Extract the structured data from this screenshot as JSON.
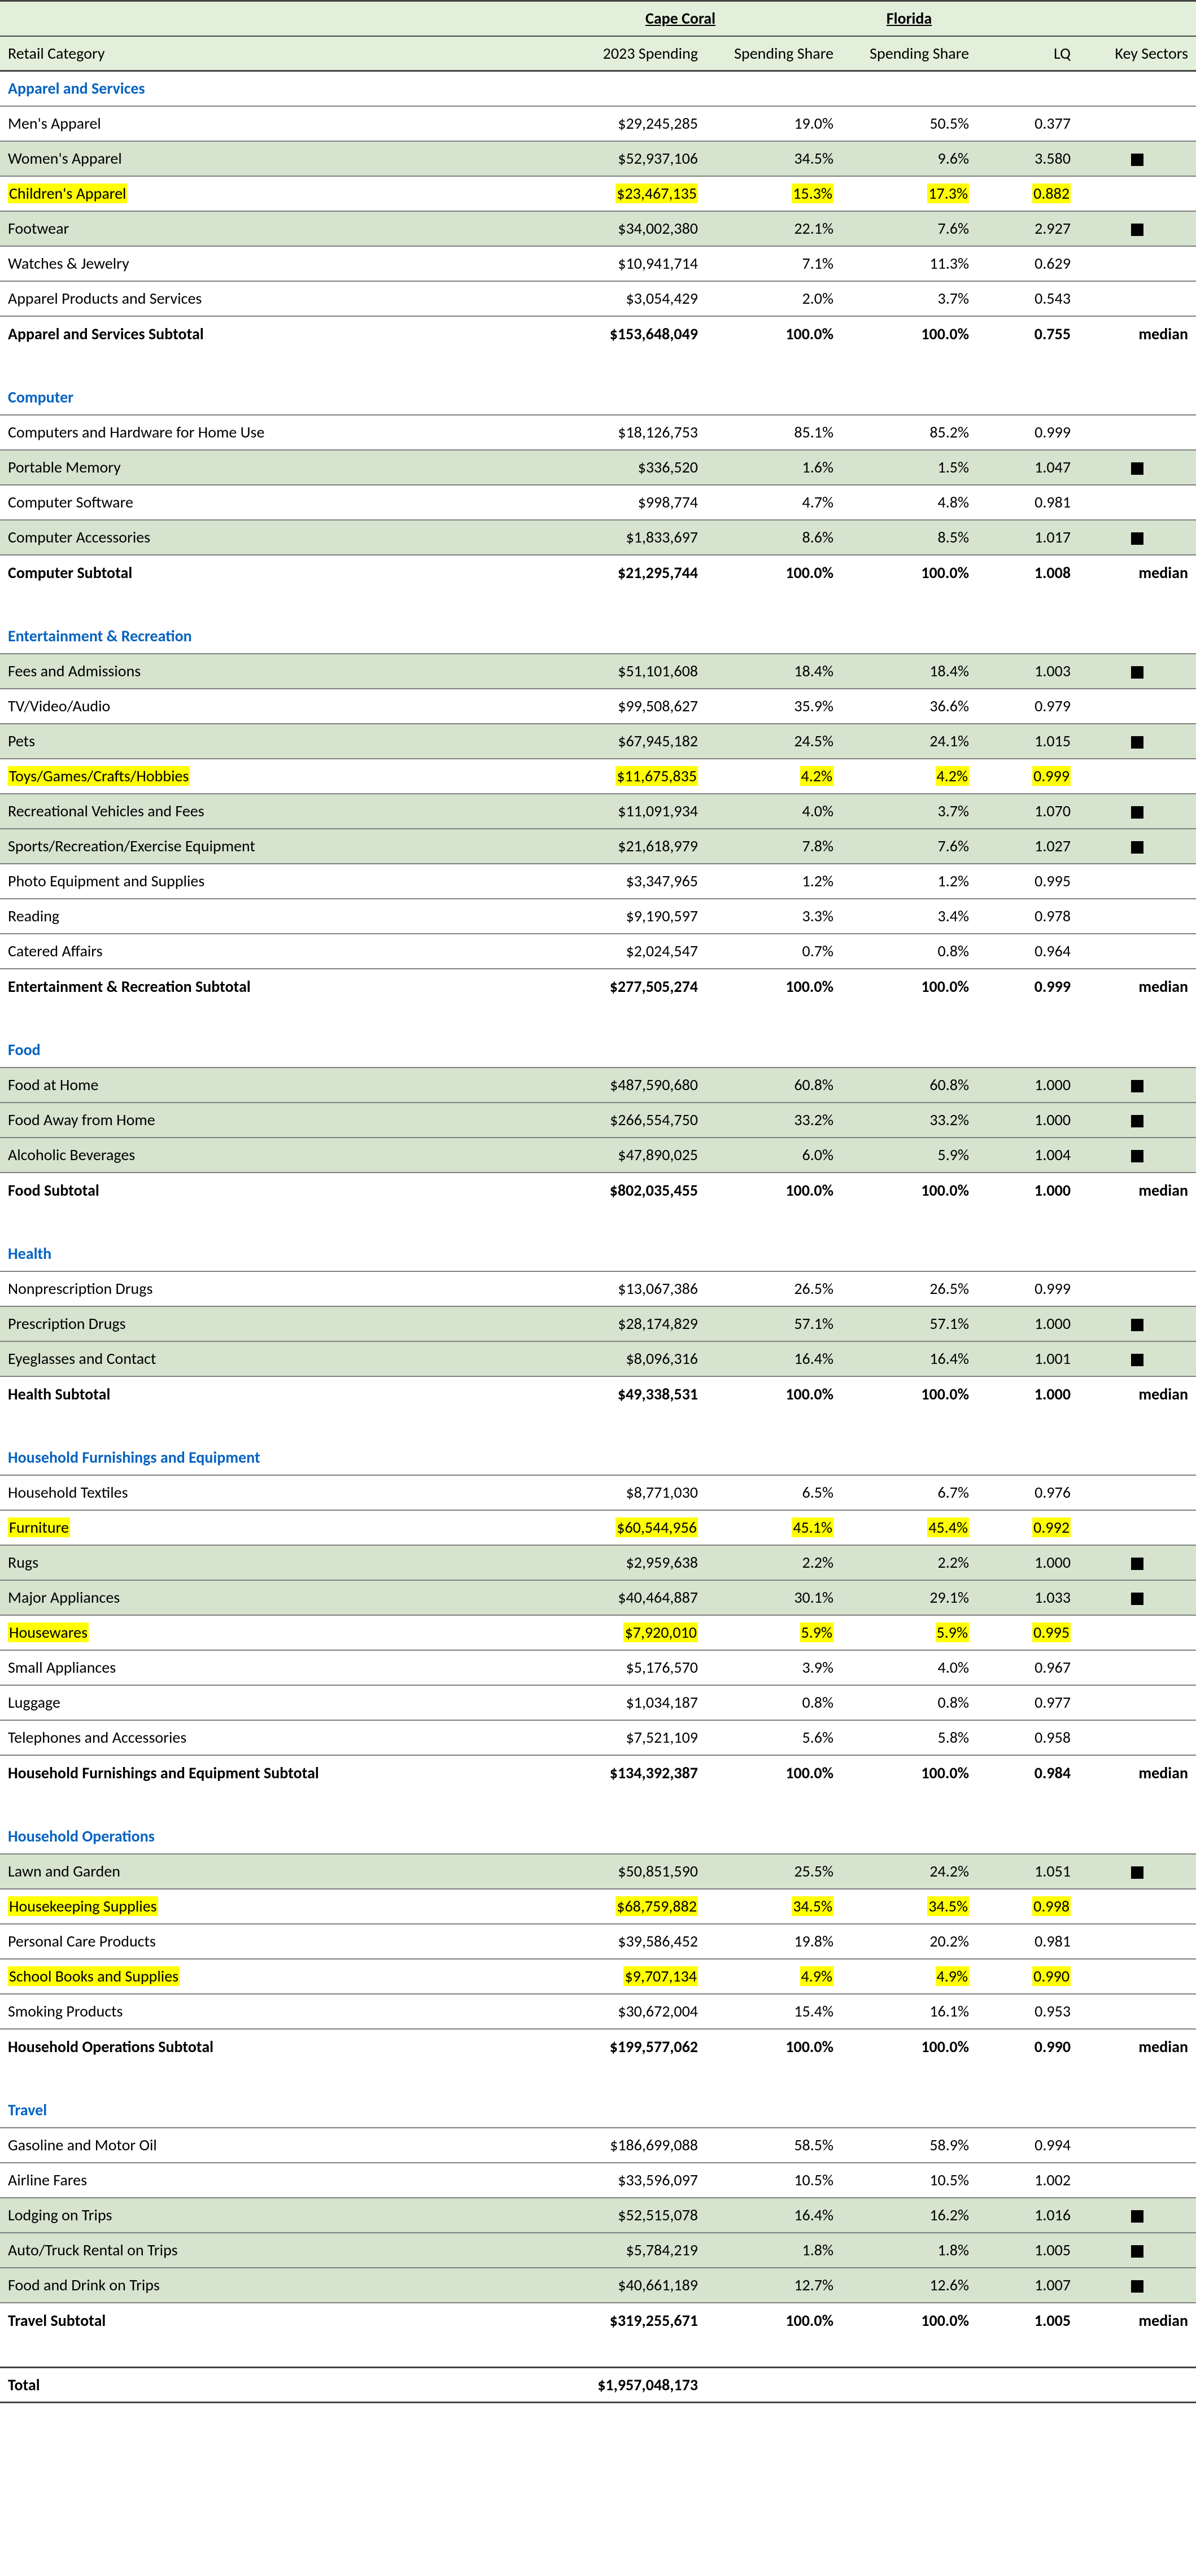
{
  "header": {
    "city": "Cape Coral",
    "state": "Florida",
    "col1": "Retail Category",
    "col2": "2023 Spending",
    "col3": "Spending Share",
    "col4": "Spending Share",
    "col5": "LQ",
    "col6": "Key Sectors"
  },
  "sections": [
    {
      "name": "Apparel and Services",
      "rows": [
        {
          "label": "Men's Apparel",
          "spend": "$29,245,285",
          "share1": "19.0%",
          "share2": "50.5%",
          "lq": "0.377",
          "key": false,
          "shaded": false,
          "hl": false,
          "topline": true
        },
        {
          "label": "Women's Apparel",
          "spend": "$52,937,106",
          "share1": "34.5%",
          "share2": "9.6%",
          "lq": "3.580",
          "key": true,
          "shaded": true,
          "hl": false
        },
        {
          "label": "Children's Apparel",
          "spend": "$23,467,135",
          "share1": "15.3%",
          "share2": "17.3%",
          "lq": "0.882",
          "key": false,
          "shaded": false,
          "hl": true
        },
        {
          "label": "Footwear",
          "spend": "$34,002,380",
          "share1": "22.1%",
          "share2": "7.6%",
          "lq": "2.927",
          "key": true,
          "shaded": true,
          "hl": false
        },
        {
          "label": "Watches & Jewelry",
          "spend": "$10,941,714",
          "share1": "7.1%",
          "share2": "11.3%",
          "lq": "0.629",
          "key": false,
          "shaded": false,
          "hl": false
        },
        {
          "label": "Apparel Products and Services",
          "spend": "$3,054,429",
          "share1": "2.0%",
          "share2": "3.7%",
          "lq": "0.543",
          "key": false,
          "shaded": false,
          "hl": false
        }
      ],
      "subtotal": {
        "label": "Apparel and Services Subtotal",
        "spend": "$153,648,049",
        "share1": "100.0%",
        "share2": "100.0%",
        "lq": "0.755",
        "note": "median"
      }
    },
    {
      "name": "Computer",
      "rows": [
        {
          "label": "Computers and Hardware for Home Use",
          "spend": "$18,126,753",
          "share1": "85.1%",
          "share2": "85.2%",
          "lq": "0.999",
          "key": false,
          "shaded": false,
          "hl": false,
          "topline": true
        },
        {
          "label": "Portable Memory",
          "spend": "$336,520",
          "share1": "1.6%",
          "share2": "1.5%",
          "lq": "1.047",
          "key": true,
          "shaded": true,
          "hl": false
        },
        {
          "label": "Computer Software",
          "spend": "$998,774",
          "share1": "4.7%",
          "share2": "4.8%",
          "lq": "0.981",
          "key": false,
          "shaded": false,
          "hl": false
        },
        {
          "label": "Computer Accessories",
          "spend": "$1,833,697",
          "share1": "8.6%",
          "share2": "8.5%",
          "lq": "1.017",
          "key": true,
          "shaded": true,
          "hl": false
        }
      ],
      "subtotal": {
        "label": "Computer Subtotal",
        "spend": "$21,295,744",
        "share1": "100.0%",
        "share2": "100.0%",
        "lq": "1.008",
        "note": "median"
      }
    },
    {
      "name": "Entertainment & Recreation",
      "rows": [
        {
          "label": "Fees and Admissions",
          "spend": "$51,101,608",
          "share1": "18.4%",
          "share2": "18.4%",
          "lq": "1.003",
          "key": true,
          "shaded": true,
          "hl": false,
          "topline": true
        },
        {
          "label": "TV/Video/Audio",
          "spend": "$99,508,627",
          "share1": "35.9%",
          "share2": "36.6%",
          "lq": "0.979",
          "key": false,
          "shaded": false,
          "hl": false
        },
        {
          "label": "Pets",
          "spend": "$67,945,182",
          "share1": "24.5%",
          "share2": "24.1%",
          "lq": "1.015",
          "key": true,
          "shaded": true,
          "hl": false
        },
        {
          "label": "Toys/Games/Crafts/Hobbies",
          "spend": "$11,675,835",
          "share1": "4.2%",
          "share2": "4.2%",
          "lq": "0.999",
          "key": false,
          "shaded": false,
          "hl": true
        },
        {
          "label": "Recreational Vehicles and Fees",
          "spend": "$11,091,934",
          "share1": "4.0%",
          "share2": "3.7%",
          "lq": "1.070",
          "key": true,
          "shaded": true,
          "hl": false
        },
        {
          "label": "Sports/Recreation/Exercise Equipment",
          "spend": "$21,618,979",
          "share1": "7.8%",
          "share2": "7.6%",
          "lq": "1.027",
          "key": true,
          "shaded": true,
          "hl": false
        },
        {
          "label": "Photo Equipment and Supplies",
          "spend": "$3,347,965",
          "share1": "1.2%",
          "share2": "1.2%",
          "lq": "0.995",
          "key": false,
          "shaded": false,
          "hl": false
        },
        {
          "label": "Reading",
          "spend": "$9,190,597",
          "share1": "3.3%",
          "share2": "3.4%",
          "lq": "0.978",
          "key": false,
          "shaded": false,
          "hl": false
        },
        {
          "label": "Catered Affairs",
          "spend": "$2,024,547",
          "share1": "0.7%",
          "share2": "0.8%",
          "lq": "0.964",
          "key": false,
          "shaded": false,
          "hl": false
        }
      ],
      "subtotal": {
        "label": "Entertainment & Recreation Subtotal",
        "spend": "$277,505,274",
        "share1": "100.0%",
        "share2": "100.0%",
        "lq": "0.999",
        "note": "median"
      }
    },
    {
      "name": "Food",
      "rows": [
        {
          "label": "Food at Home",
          "spend": "$487,590,680",
          "share1": "60.8%",
          "share2": "60.8%",
          "lq": "1.000",
          "key": true,
          "shaded": true,
          "hl": false,
          "topline": true
        },
        {
          "label": "Food Away from Home",
          "spend": "$266,554,750",
          "share1": "33.2%",
          "share2": "33.2%",
          "lq": "1.000",
          "key": true,
          "shaded": true,
          "hl": false
        },
        {
          "label": "Alcoholic Beverages",
          "spend": "$47,890,025",
          "share1": "6.0%",
          "share2": "5.9%",
          "lq": "1.004",
          "key": true,
          "shaded": true,
          "hl": false
        }
      ],
      "subtotal": {
        "label": "Food Subtotal",
        "spend": "$802,035,455",
        "share1": "100.0%",
        "share2": "100.0%",
        "lq": "1.000",
        "note": "median"
      }
    },
    {
      "name": "Health",
      "rows": [
        {
          "label": "Nonprescription Drugs",
          "spend": "$13,067,386",
          "share1": "26.5%",
          "share2": "26.5%",
          "lq": "0.999",
          "key": false,
          "shaded": false,
          "hl": false,
          "topline": true
        },
        {
          "label": "Prescription Drugs",
          "spend": "$28,174,829",
          "share1": "57.1%",
          "share2": "57.1%",
          "lq": "1.000",
          "key": true,
          "shaded": true,
          "hl": false
        },
        {
          "label": "Eyeglasses and Contact",
          "spend": "$8,096,316",
          "share1": "16.4%",
          "share2": "16.4%",
          "lq": "1.001",
          "key": true,
          "shaded": true,
          "hl": false
        }
      ],
      "subtotal": {
        "label": "Health Subtotal",
        "spend": "$49,338,531",
        "share1": "100.0%",
        "share2": "100.0%",
        "lq": "1.000",
        "note": "median"
      }
    },
    {
      "name": "Household Furnishings and Equipment",
      "rows": [
        {
          "label": "Household Textiles",
          "spend": "$8,771,030",
          "share1": "6.5%",
          "share2": "6.7%",
          "lq": "0.976",
          "key": false,
          "shaded": false,
          "hl": false,
          "topline": true
        },
        {
          "label": "Furniture",
          "spend": "$60,544,956",
          "share1": "45.1%",
          "share2": "45.4%",
          "lq": "0.992",
          "key": false,
          "shaded": false,
          "hl": true
        },
        {
          "label": "Rugs",
          "spend": "$2,959,638",
          "share1": "2.2%",
          "share2": "2.2%",
          "lq": "1.000",
          "key": true,
          "shaded": true,
          "hl": false
        },
        {
          "label": "Major Appliances",
          "spend": "$40,464,887",
          "share1": "30.1%",
          "share2": "29.1%",
          "lq": "1.033",
          "key": true,
          "shaded": true,
          "hl": false
        },
        {
          "label": "Housewares",
          "spend": "$7,920,010",
          "share1": "5.9%",
          "share2": "5.9%",
          "lq": "0.995",
          "key": false,
          "shaded": false,
          "hl": true
        },
        {
          "label": "Small Appliances",
          "spend": "$5,176,570",
          "share1": "3.9%",
          "share2": "4.0%",
          "lq": "0.967",
          "key": false,
          "shaded": false,
          "hl": false
        },
        {
          "label": "Luggage",
          "spend": "$1,034,187",
          "share1": "0.8%",
          "share2": "0.8%",
          "lq": "0.977",
          "key": false,
          "shaded": false,
          "hl": false
        },
        {
          "label": "Telephones and Accessories",
          "spend": "$7,521,109",
          "share1": "5.6%",
          "share2": "5.8%",
          "lq": "0.958",
          "key": false,
          "shaded": false,
          "hl": false
        }
      ],
      "subtotal": {
        "label": "Household Furnishings and Equipment Subtotal",
        "spend": "$134,392,387",
        "share1": "100.0%",
        "share2": "100.0%",
        "lq": "0.984",
        "note": "median"
      }
    },
    {
      "name": "Household Operations",
      "rows": [
        {
          "label": "Lawn and Garden",
          "spend": "$50,851,590",
          "share1": "25.5%",
          "share2": "24.2%",
          "lq": "1.051",
          "key": true,
          "shaded": true,
          "hl": false,
          "topline": true
        },
        {
          "label": "Housekeeping Supplies",
          "spend": "$68,759,882",
          "share1": "34.5%",
          "share2": "34.5%",
          "lq": "0.998",
          "key": false,
          "shaded": false,
          "hl": true
        },
        {
          "label": "Personal Care Products",
          "spend": "$39,586,452",
          "share1": "19.8%",
          "share2": "20.2%",
          "lq": "0.981",
          "key": false,
          "shaded": false,
          "hl": false
        },
        {
          "label": "School Books and Supplies",
          "spend": "$9,707,134",
          "share1": "4.9%",
          "share2": "4.9%",
          "lq": "0.990",
          "key": false,
          "shaded": false,
          "hl": true
        },
        {
          "label": "Smoking Products",
          "spend": "$30,672,004",
          "share1": "15.4%",
          "share2": "16.1%",
          "lq": "0.953",
          "key": false,
          "shaded": false,
          "hl": false
        }
      ],
      "subtotal": {
        "label": "Household Operations Subtotal",
        "spend": "$199,577,062",
        "share1": "100.0%",
        "share2": "100.0%",
        "lq": "0.990",
        "note": "median"
      }
    },
    {
      "name": "Travel",
      "rows": [
        {
          "label": "Gasoline and Motor Oil",
          "spend": "$186,699,088",
          "share1": "58.5%",
          "share2": "58.9%",
          "lq": "0.994",
          "key": false,
          "shaded": false,
          "hl": false,
          "topline": true
        },
        {
          "label": "Airline Fares",
          "spend": "$33,596,097",
          "share1": "10.5%",
          "share2": "10.5%",
          "lq": "1.002",
          "key": false,
          "shaded": false,
          "hl": false
        },
        {
          "label": "Lodging on Trips",
          "spend": "$52,515,078",
          "share1": "16.4%",
          "share2": "16.2%",
          "lq": "1.016",
          "key": true,
          "shaded": true,
          "hl": false
        },
        {
          "label": "Auto/Truck Rental on Trips",
          "spend": "$5,784,219",
          "share1": "1.8%",
          "share2": "1.8%",
          "lq": "1.005",
          "key": true,
          "shaded": true,
          "hl": false
        },
        {
          "label": "Food and Drink on Trips",
          "spend": "$40,661,189",
          "share1": "12.7%",
          "share2": "12.6%",
          "lq": "1.007",
          "key": true,
          "shaded": true,
          "hl": false
        }
      ],
      "subtotal": {
        "label": "Travel Subtotal",
        "spend": "$319,255,671",
        "share1": "100.0%",
        "share2": "100.0%",
        "lq": "1.005",
        "note": "median"
      }
    }
  ],
  "total": {
    "label": "Total",
    "spend": "$1,957,048,173"
  }
}
